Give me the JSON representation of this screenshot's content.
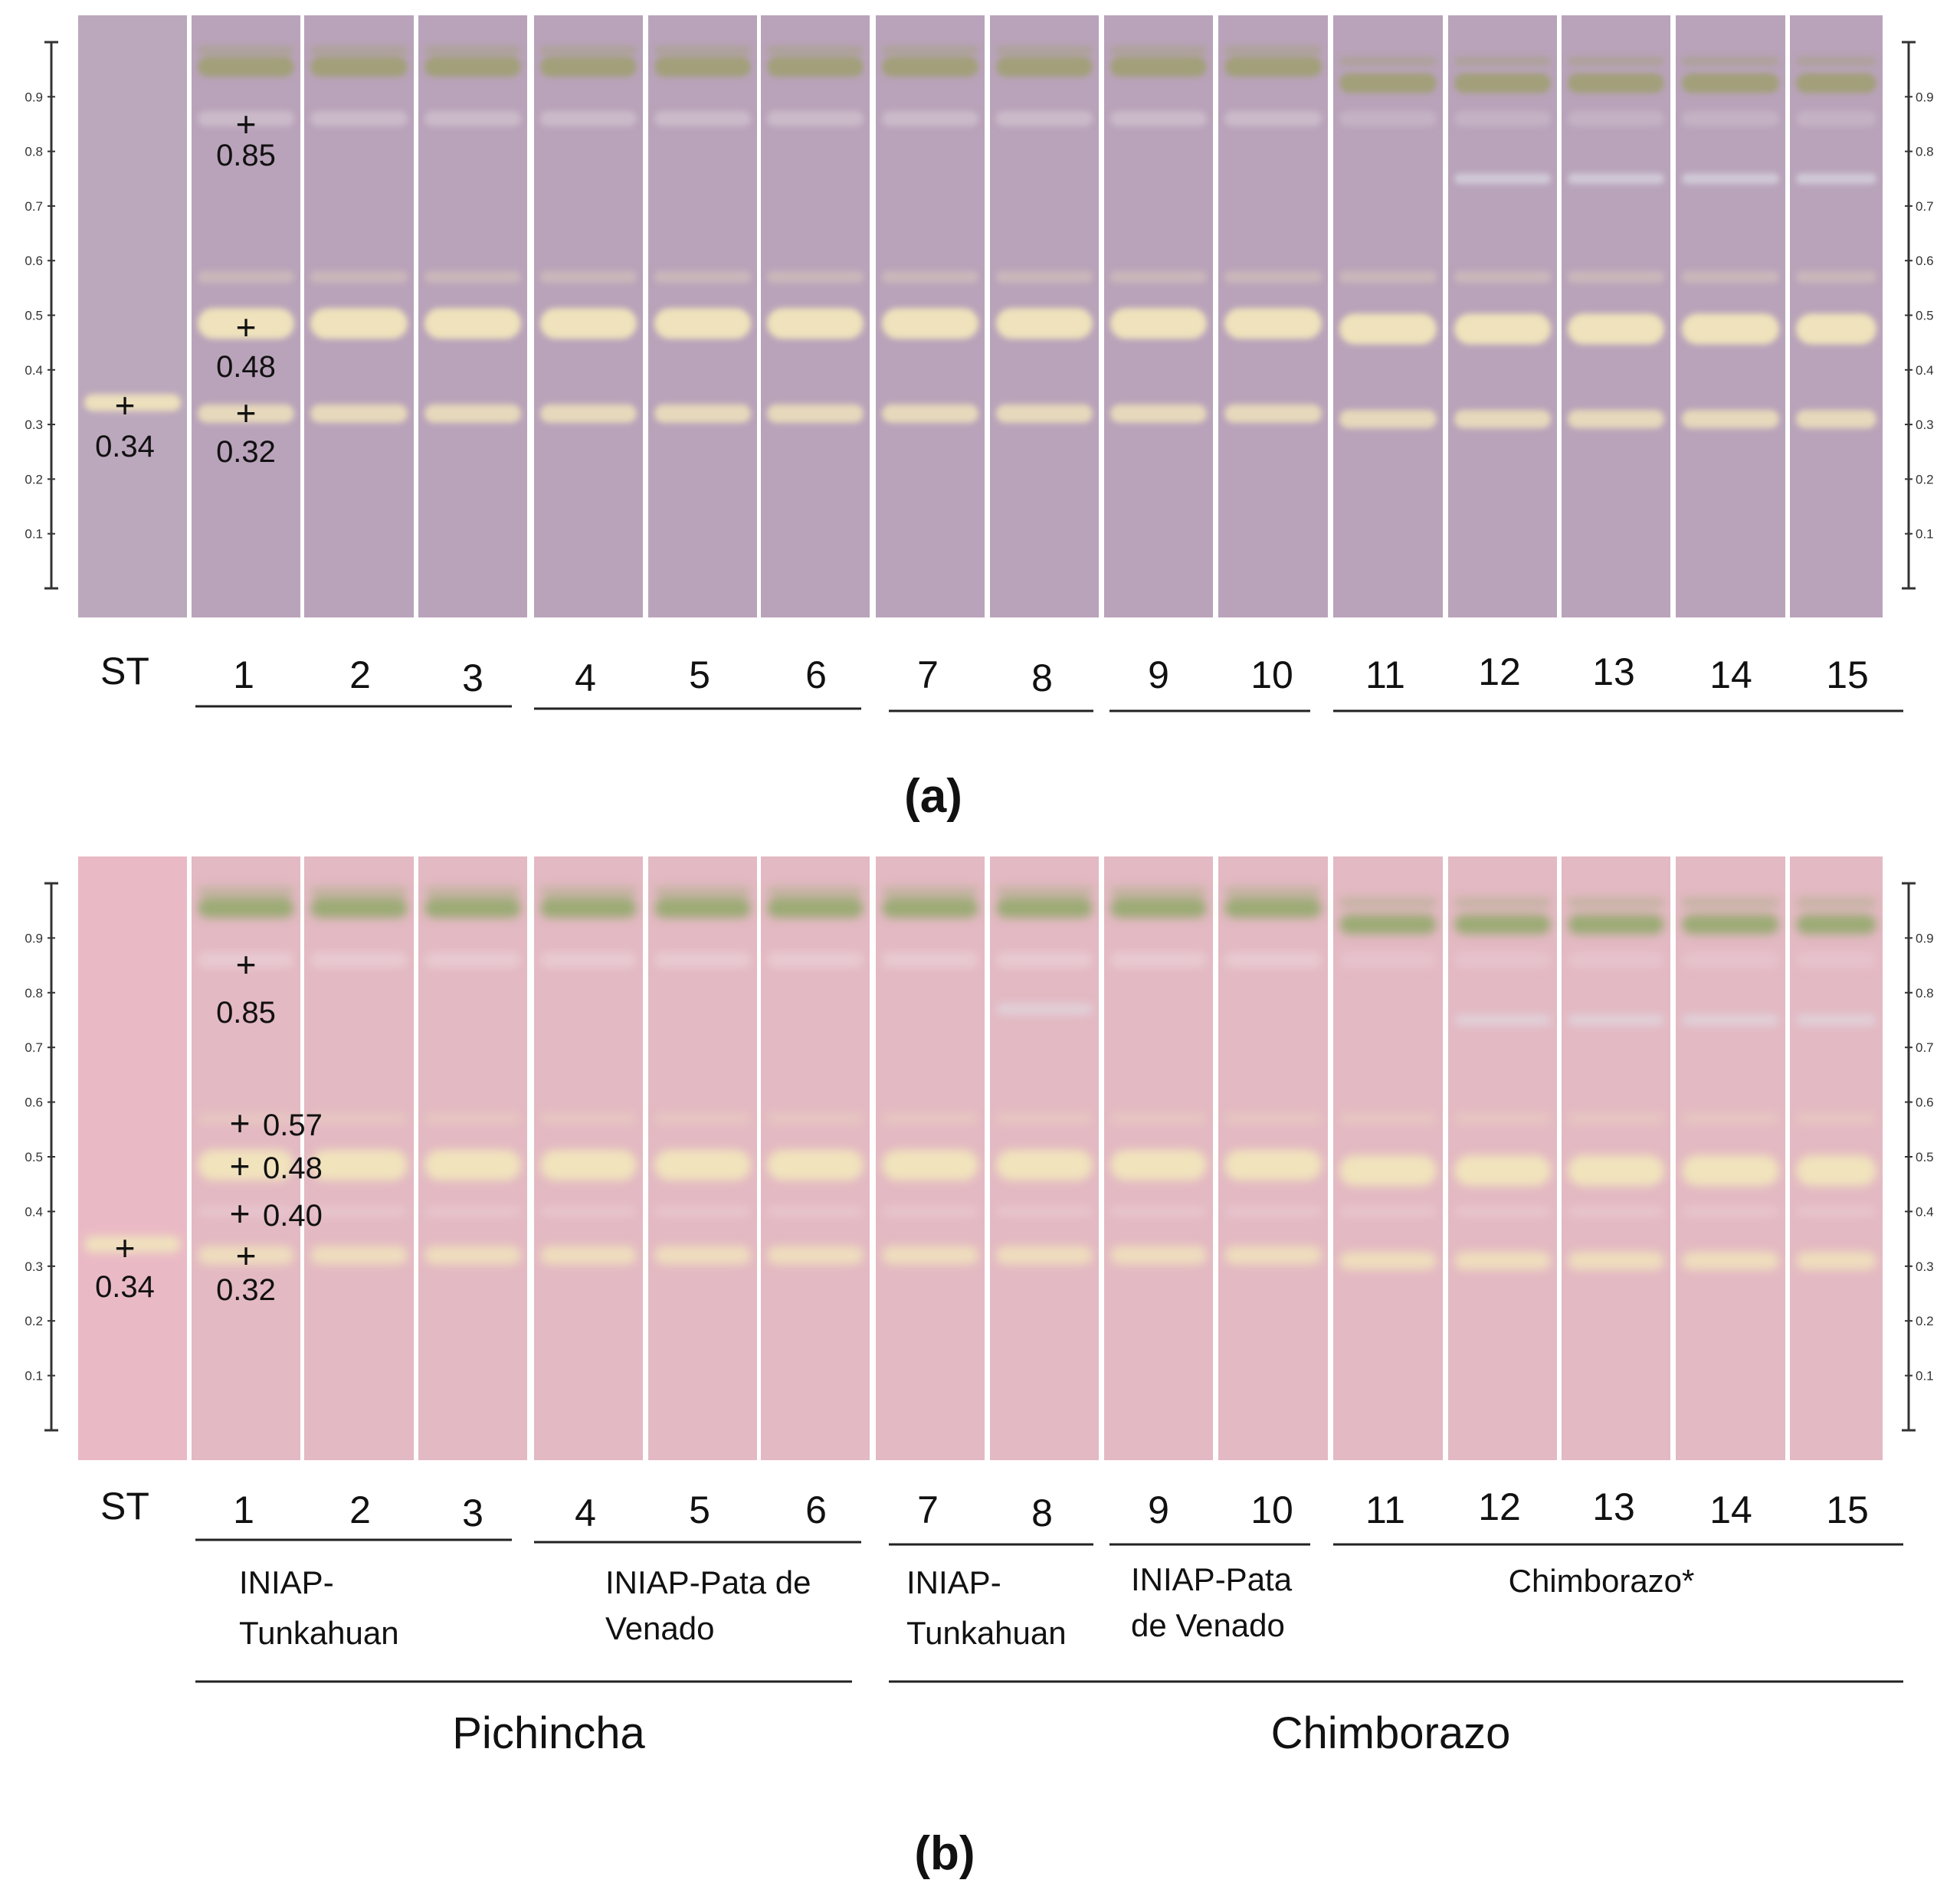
{
  "panels": [
    {
      "id": "a",
      "caption": "(a)",
      "standard_label": "ST",
      "lane_labels": [
        "1",
        "2",
        "3",
        "4",
        "5",
        "6",
        "7",
        "8",
        "9",
        "10",
        "11",
        "12",
        "13",
        "14",
        "15"
      ],
      "scale_ticks": [
        "0.1",
        "0.2",
        "0.3",
        "0.4",
        "0.5",
        "0.6",
        "0.7",
        "0.8",
        "0.9"
      ],
      "annotations": [
        {
          "lane": "ST",
          "rf": 0.34,
          "marker": "+",
          "label": "0.34",
          "placement": "below"
        },
        {
          "lane": "1",
          "rf": 0.85,
          "marker": "+",
          "label": "0.85",
          "placement": "below"
        },
        {
          "lane": "1",
          "rf": 0.48,
          "marker": "+",
          "label": "0.48",
          "placement": "below"
        },
        {
          "lane": "1",
          "rf": 0.32,
          "marker": "+",
          "label": "0.32",
          "placement": "below"
        }
      ],
      "colors": {
        "plate": "#b9a3ba",
        "plate_std": "#bca8bd",
        "green_band": "#9d9f6e",
        "yellow_band": "#f1e6bc",
        "light_band": "#d9cdd6"
      }
    },
    {
      "id": "b",
      "caption": "(b)",
      "standard_label": "ST",
      "lane_labels": [
        "1",
        "2",
        "3",
        "4",
        "5",
        "6",
        "7",
        "8",
        "9",
        "10",
        "11",
        "12",
        "13",
        "14",
        "15"
      ],
      "scale_ticks": [
        "0.1",
        "0.2",
        "0.3",
        "0.4",
        "0.5",
        "0.6",
        "0.7",
        "0.8",
        "0.9"
      ],
      "annotations": [
        {
          "lane": "ST",
          "rf": 0.34,
          "marker": "+",
          "label": "0.34",
          "placement": "below"
        },
        {
          "lane": "1",
          "rf": 0.85,
          "marker": "+",
          "label": "0.85",
          "placement": "below"
        },
        {
          "lane": "1",
          "rf": 0.57,
          "marker": "+",
          "label": "0.57",
          "placement": "right"
        },
        {
          "lane": "1",
          "rf": 0.48,
          "marker": "+",
          "label": "0.48",
          "placement": "right"
        },
        {
          "lane": "1",
          "rf": 0.4,
          "marker": "+",
          "label": "0.40",
          "placement": "right"
        },
        {
          "lane": "1",
          "rf": 0.32,
          "marker": "+",
          "label": "0.32",
          "placement": "below"
        }
      ],
      "groups": [
        {
          "lanes": [
            "1",
            "2",
            "3"
          ],
          "label_lines": [
            "INIAP-",
            "Tunkahuan"
          ]
        },
        {
          "lanes": [
            "4",
            "5",
            "6"
          ],
          "label_lines": [
            "INIAP-Pata de",
            "Venado"
          ]
        },
        {
          "lanes": [
            "7",
            "8"
          ],
          "label_lines": [
            "INIAP-",
            "Tunkahuan"
          ]
        },
        {
          "lanes": [
            "9",
            "10"
          ],
          "label_lines": [
            "INIAP-Pata",
            "de Venado"
          ]
        },
        {
          "lanes": [
            "11",
            "12",
            "13",
            "14",
            "15"
          ],
          "label_lines": [
            "Chimborazo*"
          ]
        }
      ],
      "provinces": [
        {
          "lanes": [
            "1",
            "2",
            "3",
            "4",
            "5",
            "6"
          ],
          "label": "Pichincha"
        },
        {
          "lanes": [
            "7",
            "8",
            "9",
            "10",
            "11",
            "12",
            "13",
            "14",
            "15"
          ],
          "label": "Chimborazo"
        }
      ],
      "colors": {
        "plate": "#e3b9c3",
        "plate_std": "#eab9c6",
        "green_band": "#8fa868",
        "yellow_band": "#f1e6bc",
        "light_band": "#efd8df"
      }
    }
  ]
}
